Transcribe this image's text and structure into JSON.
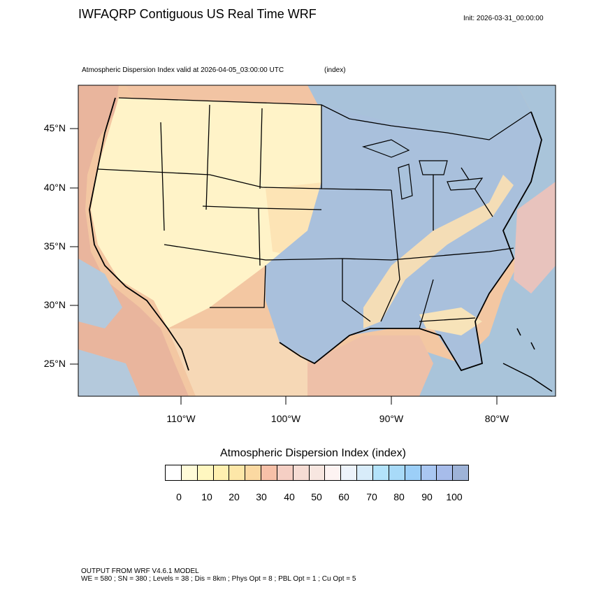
{
  "header": {
    "title": "IWFAQRP Contiguous US Real Time WRF",
    "init": "Init: 2026-03-31_00:00:00"
  },
  "map": {
    "field_subtitle": "Atmospheric Dispersion Index valid at 2026-04-05_03:00:00 UTC",
    "units": "(index)",
    "lat_labels": [
      "45°N",
      "40°N",
      "35°N",
      "30°N",
      "25°N"
    ],
    "lon_labels": [
      "110°W",
      "100°W",
      "90°W",
      "80°W"
    ],
    "colors": {
      "ocean_high": "#a3bfd6",
      "land_low": "#fff5c9",
      "land_mid": "#f8d9b0",
      "land_warm": "#f3b7a4",
      "borders": "#000000"
    }
  },
  "colorbar": {
    "title": "Atmospheric Dispersion Index  (index)",
    "tick_labels": [
      "0",
      "10",
      "20",
      "30",
      "40",
      "50",
      "60",
      "70",
      "80",
      "90",
      "100"
    ],
    "colors": [
      "#ffffff",
      "#fffbd8",
      "#fff7c0",
      "#fff0b0",
      "#fde7a8",
      "#fbd9a2",
      "#f7c0a8",
      "#f5cfc4",
      "#f6dcd4",
      "#f7e6e0",
      "#fdf3f2",
      "#edf3fb",
      "#d8ecfa",
      "#b3e3fb",
      "#a8daf8",
      "#9ccff8",
      "#a9c7f2",
      "#a7bcea",
      "#9eb3d8"
    ]
  },
  "footer": {
    "line1": "OUTPUT FROM WRF V4.6.1 MODEL",
    "line2": "WE = 580 ; SN = 380 ; Levels = 38 ; Dis = 8km ; Phys Opt = 8 ; PBL Opt = 1 ; Cu Opt = 5"
  }
}
